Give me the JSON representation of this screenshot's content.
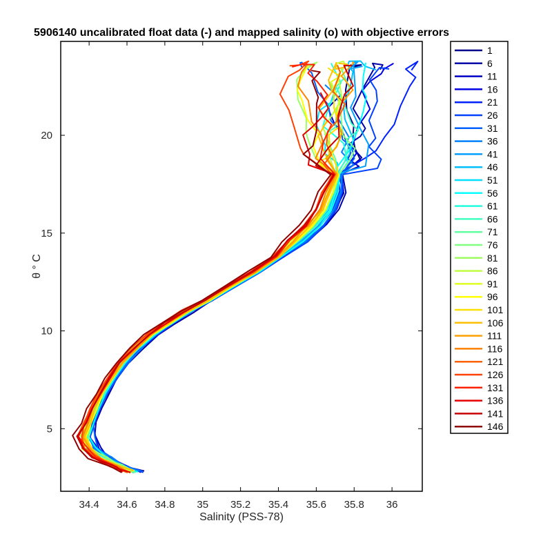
{
  "chart_data": {
    "type": "line",
    "title": "5906140 uncalibrated float data (-) and mapped salinity (o) with objective errors",
    "xlabel": "Salinity (PSS-78)",
    "ylabel": "θ ° C",
    "xlim": [
      34.25,
      36.16
    ],
    "ylim": [
      1.8,
      24.8
    ],
    "xticks": [
      34.4,
      34.6,
      34.8,
      35,
      35.2,
      35.4,
      35.6,
      35.8,
      36
    ],
    "xtick_labels": [
      "34.4",
      "34.6",
      "34.8",
      "35",
      "35.2",
      "35.4",
      "35.6",
      "35.8",
      "36"
    ],
    "yticks": [
      5,
      10,
      15,
      20
    ],
    "ytick_labels": [
      "5",
      "10",
      "15",
      "20"
    ],
    "grid": false,
    "legend_position": "outside-right",
    "colormap": "jet",
    "legend": [
      {
        "label": "1",
        "color": "#00008f"
      },
      {
        "label": "6",
        "color": "#0000ab"
      },
      {
        "label": "11",
        "color": "#0000c8"
      },
      {
        "label": "16",
        "color": "#0000e4"
      },
      {
        "label": "21",
        "color": "#0020ff"
      },
      {
        "label": "26",
        "color": "#0040ff"
      },
      {
        "label": "31",
        "color": "#0060ff"
      },
      {
        "label": "36",
        "color": "#0080ff"
      },
      {
        "label": "41",
        "color": "#009fff"
      },
      {
        "label": "46",
        "color": "#00bfff"
      },
      {
        "label": "51",
        "color": "#00dfff"
      },
      {
        "label": "56",
        "color": "#00ffff"
      },
      {
        "label": "61",
        "color": "#20ffdf"
      },
      {
        "label": "66",
        "color": "#40ffbf"
      },
      {
        "label": "71",
        "color": "#60ff9f"
      },
      {
        "label": "76",
        "color": "#80ff80"
      },
      {
        "label": "81",
        "color": "#9fff60"
      },
      {
        "label": "86",
        "color": "#bfff40"
      },
      {
        "label": "91",
        "color": "#dfff20"
      },
      {
        "label": "96",
        "color": "#ffff00"
      },
      {
        "label": "101",
        "color": "#ffdf00"
      },
      {
        "label": "106",
        "color": "#ffbf00"
      },
      {
        "label": "111",
        "color": "#ff9f00"
      },
      {
        "label": "116",
        "color": "#ff8000"
      },
      {
        "label": "121",
        "color": "#ff6000"
      },
      {
        "label": "126",
        "color": "#ff4000"
      },
      {
        "label": "131",
        "color": "#ff2000"
      },
      {
        "label": "136",
        "color": "#e40000"
      },
      {
        "label": "141",
        "color": "#c80000"
      },
      {
        "label": "146",
        "color": "#8f0000"
      }
    ],
    "core_curve": {
      "x": [
        34.63,
        34.56,
        34.47,
        34.4,
        34.38,
        34.4,
        34.43,
        34.47,
        34.52,
        34.58,
        34.65,
        34.73,
        34.82,
        34.92,
        35.03,
        35.15,
        35.28,
        35.4,
        35.5,
        35.59,
        35.65,
        35.69,
        35.71
      ],
      "y": [
        2.8,
        3.1,
        3.5,
        4.0,
        4.6,
        5.3,
        6.0,
        6.8,
        7.6,
        8.4,
        9.1,
        9.8,
        10.4,
        11.0,
        11.6,
        12.3,
        13.0,
        13.8,
        14.6,
        15.4,
        16.2,
        17.1,
        18.0
      ]
    }
  }
}
